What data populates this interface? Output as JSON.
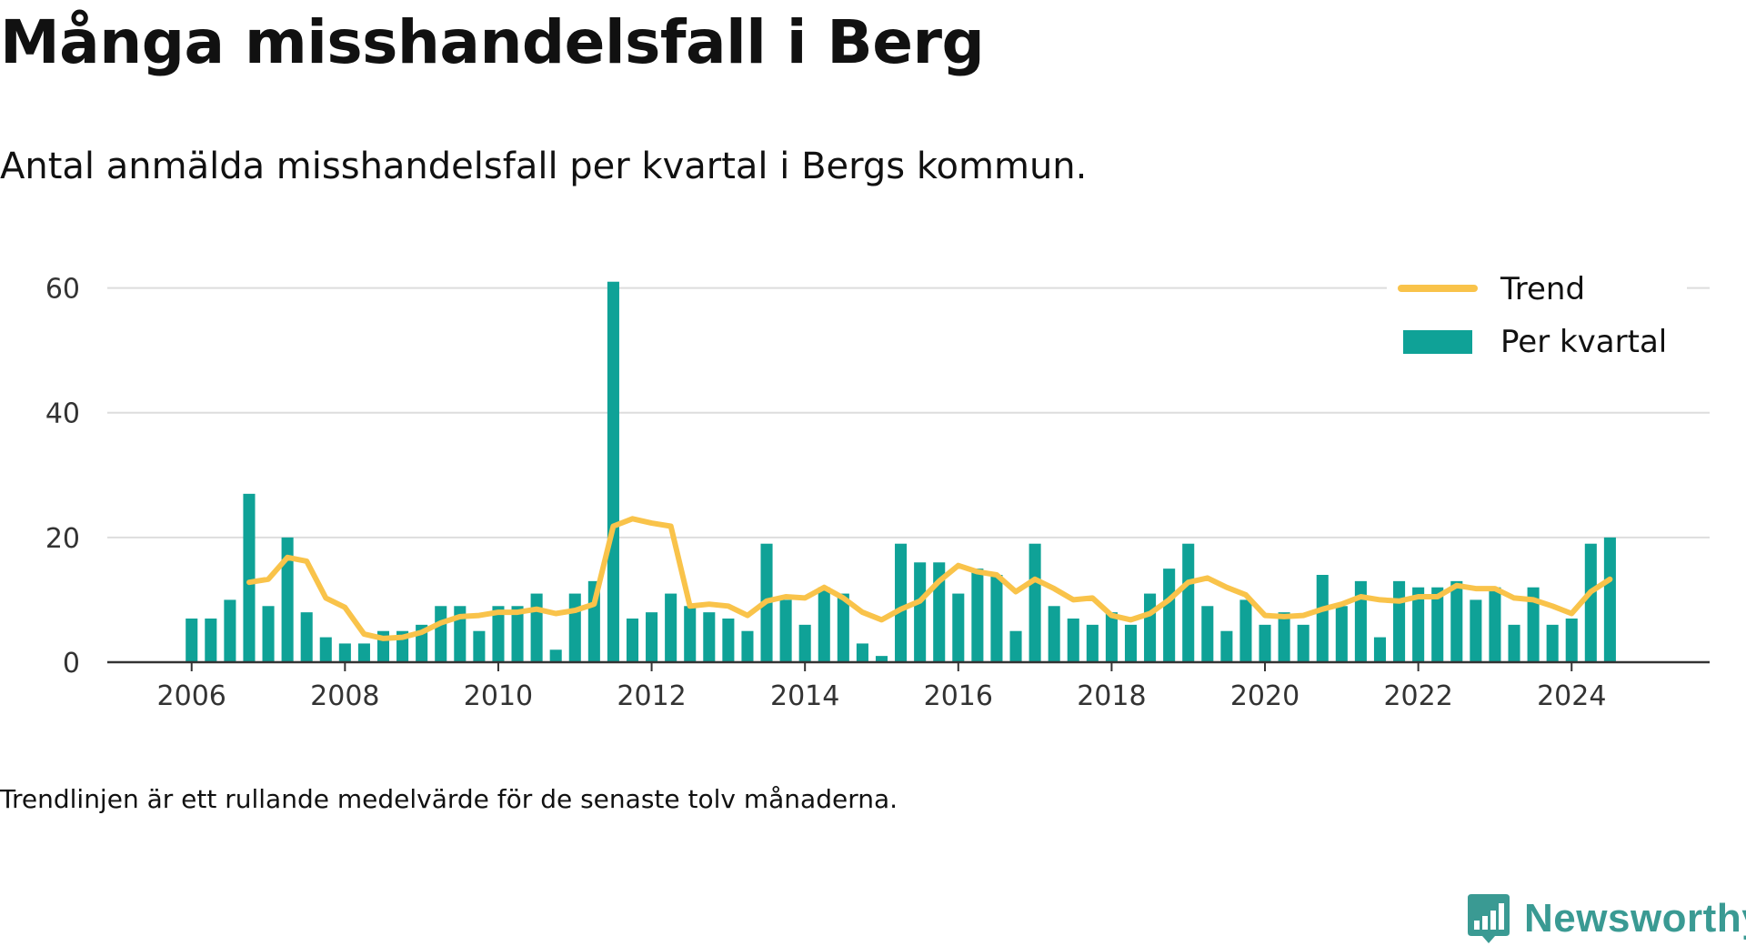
{
  "header": {
    "title": "Många misshandelsfall i Berg",
    "subtitle": "Antal anmälda misshandelsfall per kvartal i Bergs kommun."
  },
  "footer": {
    "note": "Trendlinjen är ett rullande medelvärde för de senaste tolv månaderna.",
    "brand": "Newsworthy"
  },
  "colors": {
    "bar": "#0fa297",
    "trend": "#f9c34a",
    "grid": "#dddddd",
    "axis": "#333333",
    "brand": "#3a9a93"
  },
  "chart_data": {
    "type": "bar",
    "title": "",
    "xlabel": "",
    "ylabel": "",
    "ylim": [
      0,
      70
    ],
    "xlim": [
      2004.9,
      2025.8
    ],
    "y_ticks": [
      0,
      20,
      40,
      60
    ],
    "x_ticks": [
      "2006",
      "2008",
      "2010",
      "2012",
      "2014",
      "2016",
      "2018",
      "2020",
      "2022",
      "2024"
    ],
    "grid": true,
    "legend_position": "top-right",
    "legend": [
      {
        "label": "Trend",
        "type": "line"
      },
      {
        "label": "Per kvartal",
        "type": "bar"
      }
    ],
    "quarters": [
      "2006 Q1",
      "2006 Q2",
      "2006 Q3",
      "2006 Q4",
      "2007 Q1",
      "2007 Q2",
      "2007 Q3",
      "2007 Q4",
      "2008 Q1",
      "2008 Q2",
      "2008 Q3",
      "2008 Q4",
      "2009 Q1",
      "2009 Q2",
      "2009 Q3",
      "2009 Q4",
      "2010 Q1",
      "2010 Q2",
      "2010 Q3",
      "2010 Q4",
      "2011 Q1",
      "2011 Q2",
      "2011 Q3",
      "2011 Q4",
      "2012 Q1",
      "2012 Q2",
      "2012 Q3",
      "2012 Q4",
      "2013 Q1",
      "2013 Q2",
      "2013 Q3",
      "2013 Q4",
      "2014 Q1",
      "2014 Q2",
      "2014 Q3",
      "2014 Q4",
      "2015 Q1",
      "2015 Q2",
      "2015 Q3",
      "2015 Q4",
      "2016 Q1",
      "2016 Q2",
      "2016 Q3",
      "2016 Q4",
      "2017 Q1",
      "2017 Q2",
      "2017 Q3",
      "2017 Q4",
      "2018 Q1",
      "2018 Q2",
      "2018 Q3",
      "2018 Q4",
      "2019 Q1",
      "2019 Q2",
      "2019 Q3",
      "2019 Q4",
      "2020 Q1",
      "2020 Q2",
      "2020 Q3",
      "2020 Q4",
      "2021 Q1",
      "2021 Q2",
      "2021 Q3",
      "2021 Q4",
      "2022 Q1",
      "2022 Q2",
      "2022 Q3",
      "2022 Q4",
      "2023 Q1",
      "2023 Q2",
      "2023 Q3",
      "2023 Q4",
      "2024 Q1",
      "2024 Q2",
      "2024 Q3"
    ],
    "series": [
      {
        "name": "Per kvartal",
        "type": "bar",
        "values": [
          7,
          7,
          10,
          27,
          9,
          20,
          8,
          4,
          3,
          3,
          5,
          5,
          6,
          9,
          9,
          5,
          9,
          9,
          11,
          2,
          11,
          13,
          61,
          7,
          8,
          11,
          9,
          8,
          7,
          5,
          19,
          10,
          6,
          12,
          11,
          3,
          1,
          19,
          16,
          16,
          11,
          15,
          14,
          5,
          19,
          9,
          7,
          6,
          8,
          6,
          11,
          15,
          19,
          9,
          5,
          10,
          6,
          8,
          6,
          14,
          9,
          13,
          4,
          13,
          12,
          12,
          13,
          10,
          12,
          6,
          12,
          6,
          7,
          19,
          20
        ]
      },
      {
        "name": "Trend",
        "type": "line",
        "values": [
          null,
          null,
          null,
          12.8,
          13.3,
          16.8,
          16.2,
          10.3,
          8.8,
          4.5,
          3.8,
          4.0,
          4.8,
          6.3,
          7.3,
          7.5,
          8.0,
          8.0,
          8.5,
          7.8,
          8.3,
          9.3,
          21.8,
          23.0,
          22.3,
          21.8,
          9.0,
          9.3,
          9.0,
          7.5,
          9.8,
          10.5,
          10.3,
          12.0,
          10.3,
          8.0,
          6.8,
          8.5,
          9.8,
          13.0,
          15.5,
          14.5,
          14.0,
          11.3,
          13.3,
          11.8,
          10.0,
          10.3,
          7.5,
          6.8,
          7.8,
          10.0,
          12.8,
          13.5,
          12.0,
          10.8,
          7.5,
          7.3,
          7.5,
          8.5,
          9.3,
          10.5,
          10.0,
          9.8,
          10.5,
          10.5,
          12.3,
          11.8,
          11.8,
          10.3,
          10.0,
          9.0,
          7.8,
          11.3,
          13.3
        ]
      }
    ]
  }
}
